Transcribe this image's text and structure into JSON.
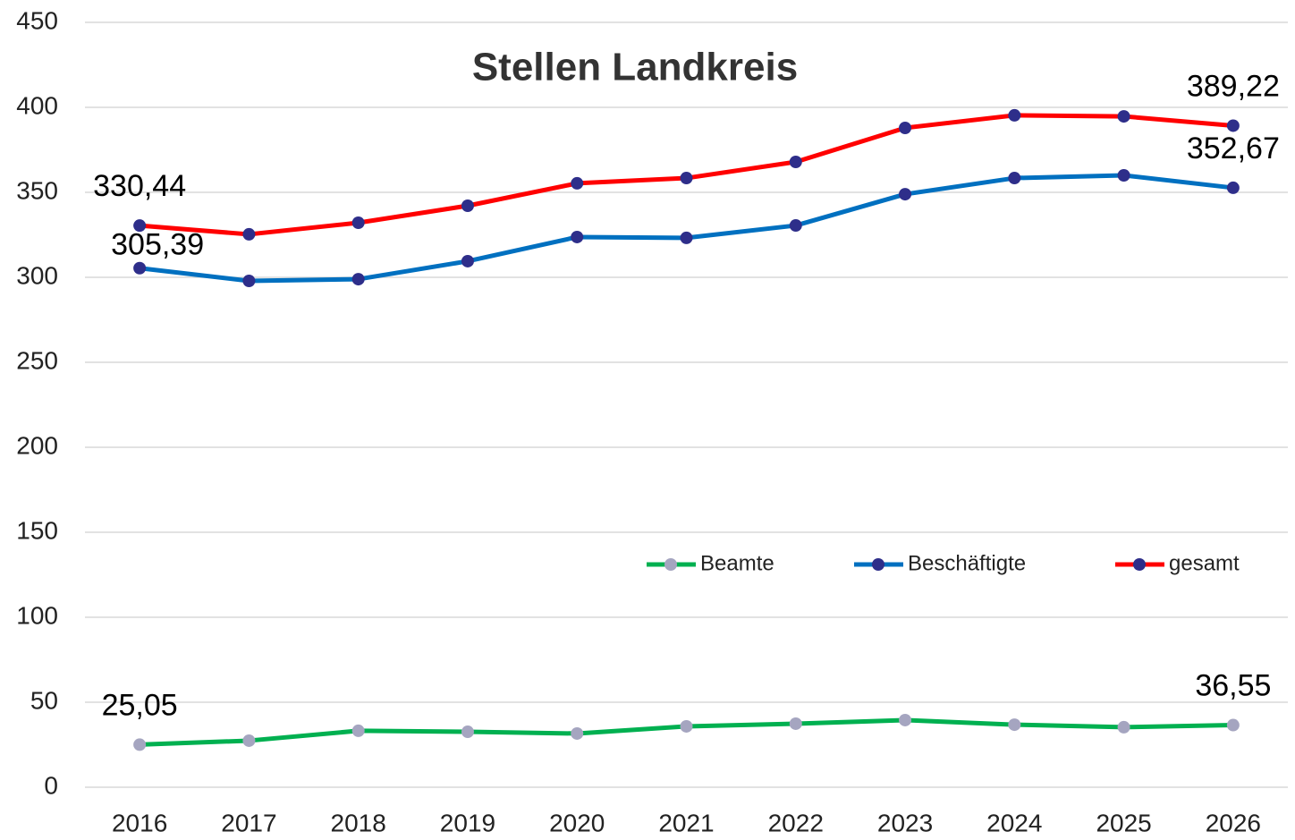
{
  "chart_data": {
    "type": "line",
    "title": "Stellen Landkreis",
    "categories": [
      "2016",
      "2017",
      "2018",
      "2019",
      "2020",
      "2021",
      "2022",
      "2023",
      "2024",
      "2025",
      "2026"
    ],
    "series": [
      {
        "name": "Beamte",
        "color": "#00b050",
        "marker_color": "#a5a5c0",
        "values": [
          25.05,
          27.4,
          33.2,
          32.6,
          31.6,
          35.8,
          37.4,
          39.5,
          36.8,
          35.3,
          36.55
        ],
        "value_labels": [
          "25,05",
          null,
          null,
          null,
          null,
          null,
          null,
          null,
          null,
          null,
          "36,55"
        ]
      },
      {
        "name": "Beschäftigte",
        "color": "#0070c0",
        "marker_color": "#2e2e8a",
        "values": [
          305.39,
          297.9,
          298.9,
          309.5,
          323.7,
          323.2,
          330.5,
          348.9,
          358.4,
          360.0,
          352.67
        ],
        "value_labels": [
          "305,39",
          null,
          null,
          null,
          null,
          null,
          null,
          null,
          null,
          null,
          "352,67"
        ]
      },
      {
        "name": "gesamt",
        "color": "#ff0000",
        "marker_color": "#2e2e8a",
        "values": [
          330.44,
          325.3,
          332.1,
          342.1,
          355.3,
          358.4,
          367.9,
          387.9,
          395.3,
          394.7,
          389.22
        ],
        "value_labels": [
          "330,44",
          null,
          null,
          null,
          null,
          null,
          null,
          null,
          null,
          null,
          "389,22"
        ]
      }
    ],
    "ylim": [
      0,
      450
    ],
    "yticks": [
      0,
      50,
      100,
      150,
      200,
      250,
      300,
      350,
      400,
      450
    ],
    "grid": true,
    "legend": "right"
  }
}
